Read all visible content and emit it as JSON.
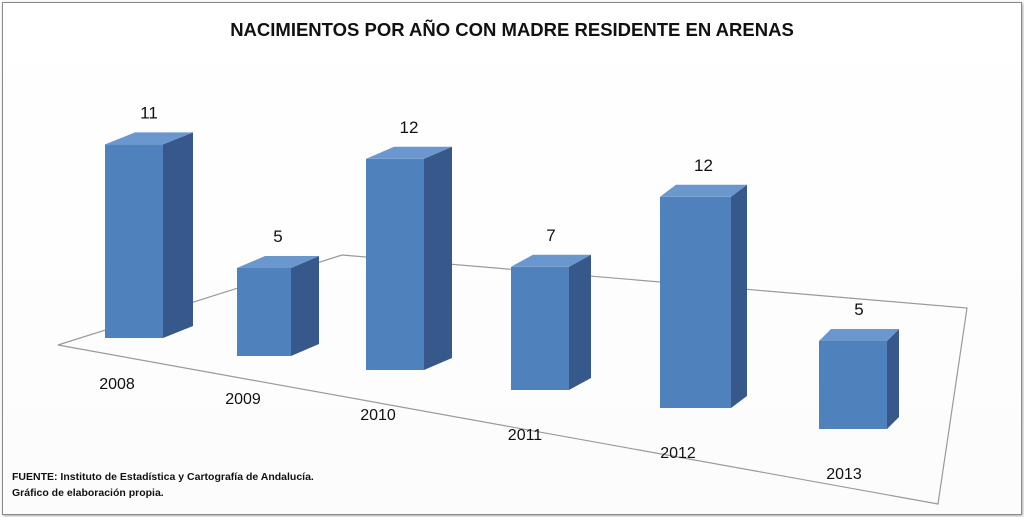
{
  "chart_data": {
    "type": "bar",
    "title": "NACIMIENTOS POR AÑO CON MADRE RESIDENTE EN ARENAS",
    "categories": [
      "2008",
      "2009",
      "2010",
      "2011",
      "2012",
      "2013"
    ],
    "values": [
      11,
      5,
      12,
      7,
      12,
      5
    ],
    "data_labels": [
      "11",
      "5",
      "12",
      "7",
      "12",
      "5"
    ],
    "xlabel": "",
    "ylabel": "",
    "grid": false,
    "legend": "none",
    "style": "3d-columns",
    "colors": {
      "bar_front": "#4f81bd",
      "bar_side": "#36588a",
      "bar_top": "#6b97cf"
    }
  },
  "source": {
    "line1": "FUENTE: Instituto de Estadística y Cartografía de Andalucía.",
    "line2": "Gráfico de elaboración propia."
  }
}
